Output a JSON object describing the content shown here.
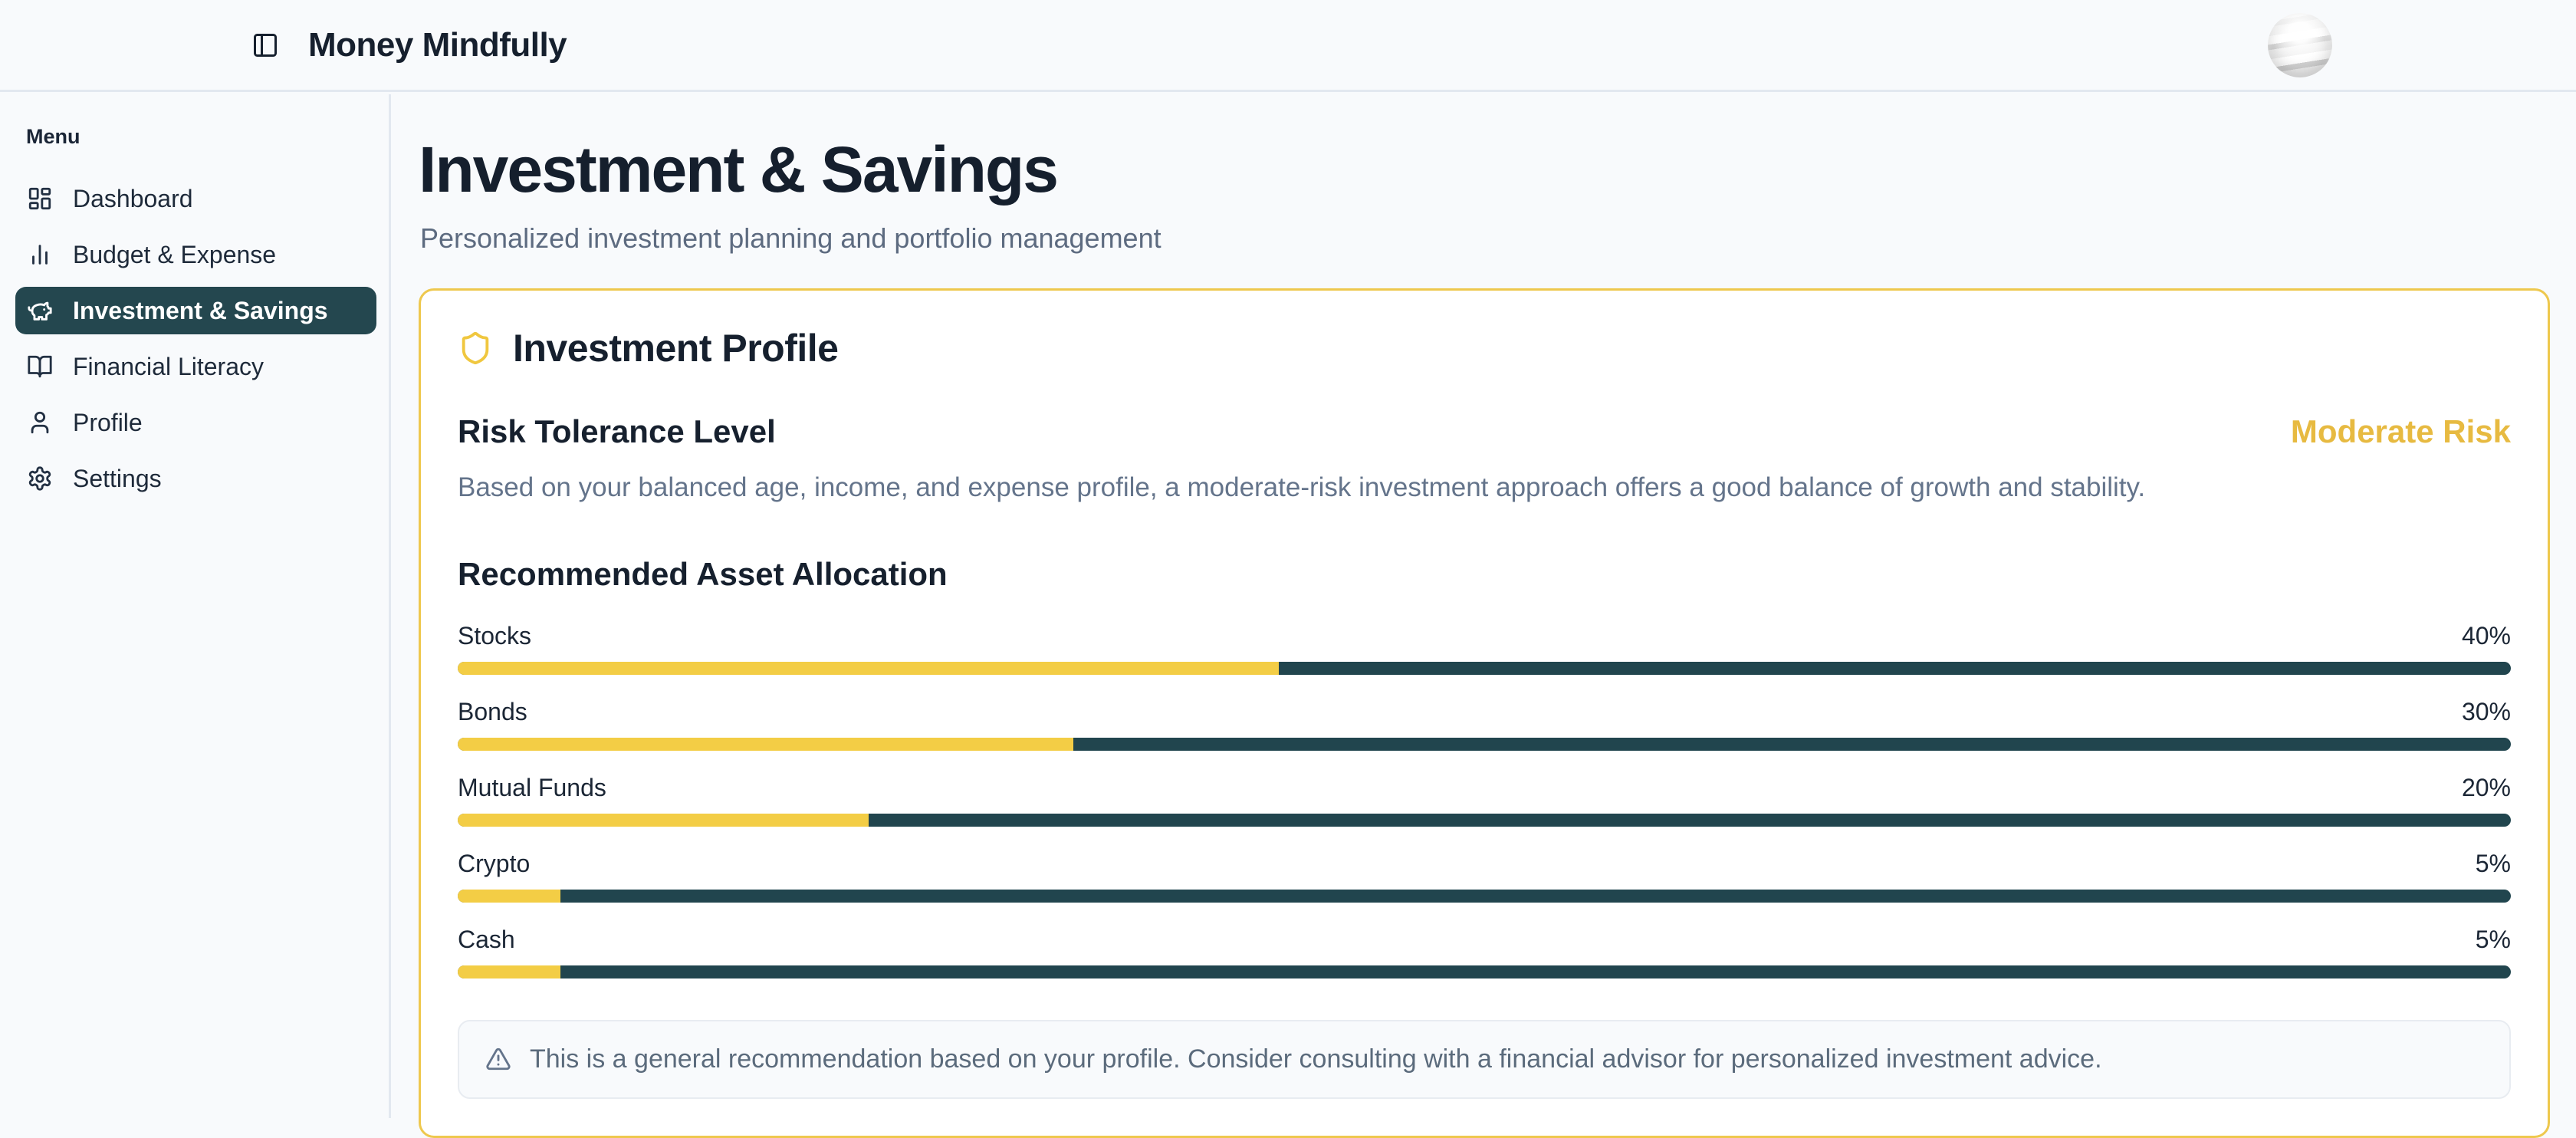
{
  "header": {
    "app_title": "Money Mindfully"
  },
  "sidebar": {
    "section_label": "Menu",
    "items": [
      {
        "label": "Dashboard",
        "active": false
      },
      {
        "label": "Budget & Expense",
        "active": false
      },
      {
        "label": "Investment & Savings",
        "active": true
      },
      {
        "label": "Financial Literacy",
        "active": false
      },
      {
        "label": "Profile",
        "active": false
      },
      {
        "label": "Settings",
        "active": false
      }
    ]
  },
  "page": {
    "title": "Investment & Savings",
    "subtitle": "Personalized investment planning and portfolio management"
  },
  "profile_card": {
    "title": "Investment Profile",
    "risk_heading": "Risk Tolerance Level",
    "risk_level": "Moderate Risk",
    "risk_description": "Based on your balanced age, income, and expense profile, a moderate-risk investment approach offers a good balance of growth and stability.",
    "allocation_heading": "Recommended Asset Allocation",
    "allocation": [
      {
        "label": "Stocks",
        "percent_label": "40%",
        "value": 40
      },
      {
        "label": "Bonds",
        "percent_label": "30%",
        "value": 30
      },
      {
        "label": "Mutual Funds",
        "percent_label": "20%",
        "value": 20
      },
      {
        "label": "Crypto",
        "percent_label": "5%",
        "value": 5
      },
      {
        "label": "Cash",
        "percent_label": "5%",
        "value": 5
      }
    ],
    "note": "This is a general recommendation based on your profile. Consider consulting with a financial advisor for personalized investment advice."
  },
  "colors": {
    "card_border_gold": "#eec84e",
    "bar_fill_yellow": "#f3cd45",
    "bar_track_teal": "#21454e",
    "active_item_teal": "#24474f",
    "risk_level_gold": "#e7ba41",
    "heading_navy": "#16202e",
    "muted_slate": "#64748b",
    "page_background": "#f8fafc",
    "divider_gray": "#e2e8f0"
  }
}
